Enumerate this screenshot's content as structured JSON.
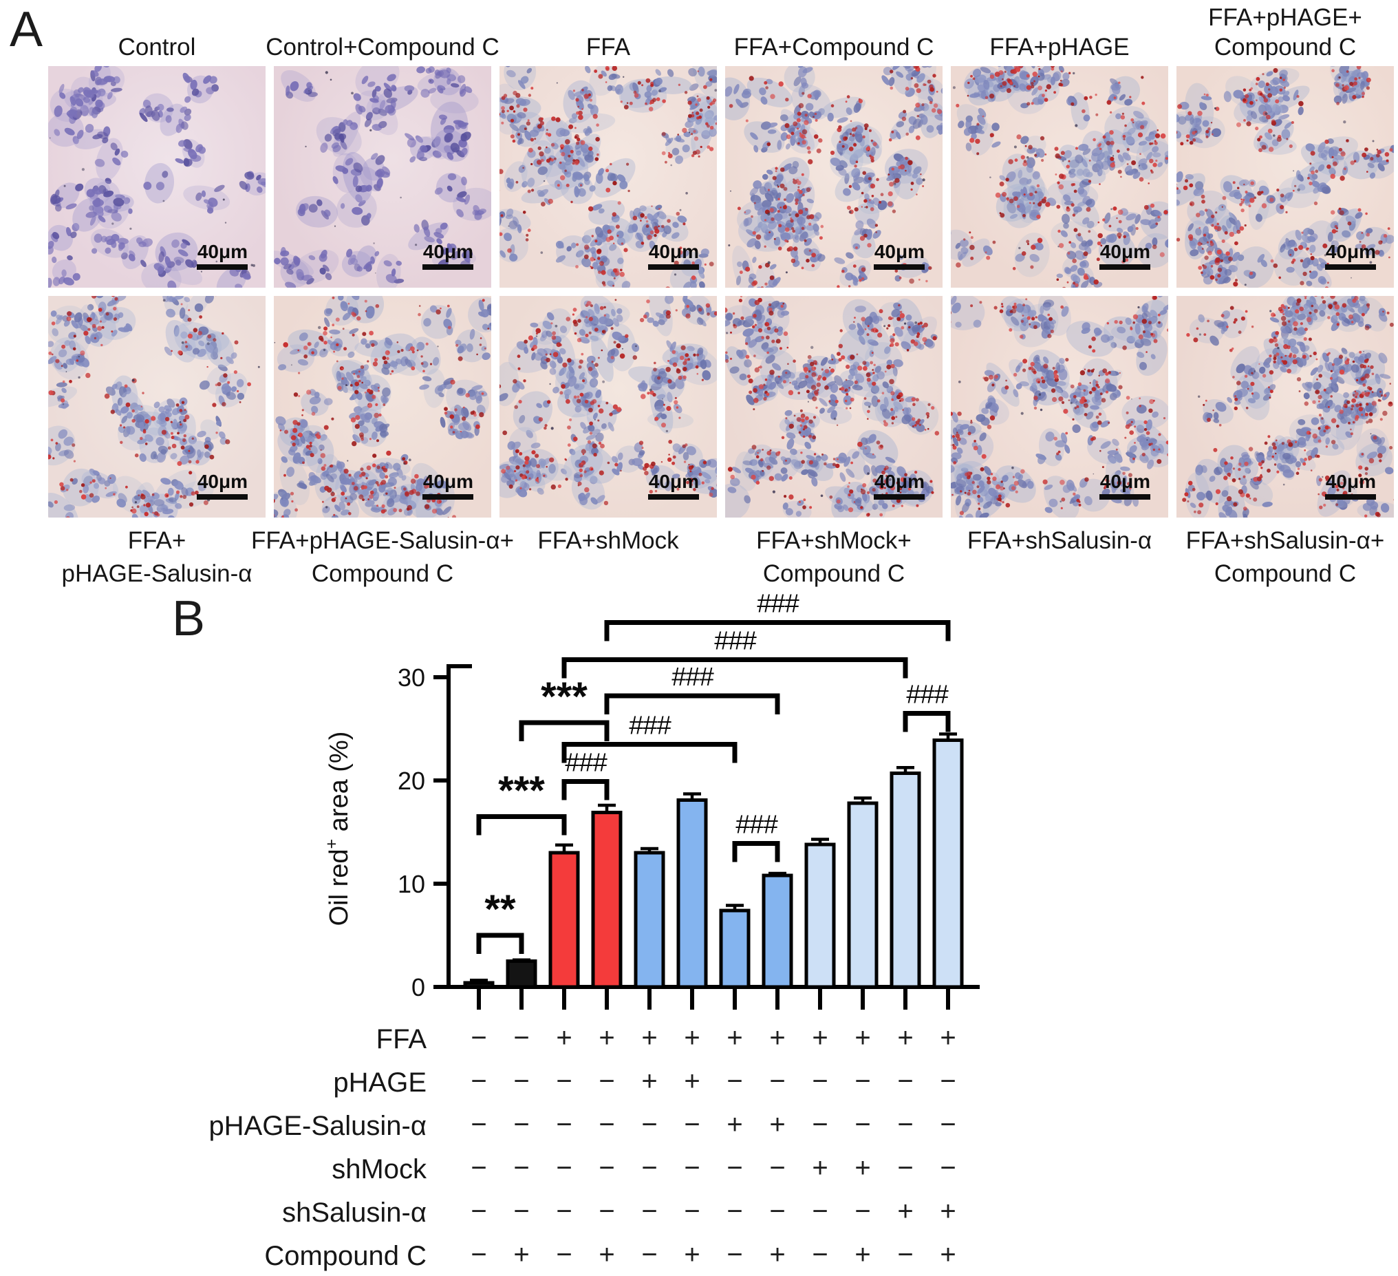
{
  "labels": {
    "panel_a": "A",
    "panel_b": "B"
  },
  "micrographs": {
    "scale_bar_label": "40μm",
    "panels": [
      {
        "row": 0,
        "col": 0,
        "label_lines": [
          "Control"
        ],
        "lipid": "none",
        "bg": "#e7d4dd",
        "bg2": "#efe3e9",
        "nucleus": "#7a71b8",
        "nucleus2": "#5d55a0",
        "cyto": "#a89fd0",
        "seed": 11
      },
      {
        "row": 0,
        "col": 1,
        "label_lines": [
          "Control+Compound C"
        ],
        "lipid": "none",
        "bg": "#e6d2da",
        "bg2": "#eee0e5",
        "nucleus": "#756cb5",
        "nucleus2": "#57509c",
        "cyto": "#a49bcd",
        "seed": 23
      },
      {
        "row": 0,
        "col": 2,
        "label_lines": [
          "FFA"
        ],
        "lipid": "high",
        "bg": "#eedcd6",
        "bg2": "#f4e7e1",
        "nucleus": "#8089bd",
        "nucleus2": "#6b74ac",
        "cyto": "#aab5d3",
        "seed": 37
      },
      {
        "row": 0,
        "col": 3,
        "label_lines": [
          "FFA+Compound C"
        ],
        "lipid": "high",
        "bg": "#eedbd4",
        "bg2": "#f4e7e0",
        "nucleus": "#7f87bc",
        "nucleus2": "#6a72ab",
        "cyto": "#a9b4d2",
        "seed": 41
      },
      {
        "row": 0,
        "col": 4,
        "label_lines": [
          "FFA+pHAGE"
        ],
        "lipid": "high",
        "bg": "#edd9d2",
        "bg2": "#f3e4dd",
        "nucleus": "#8189bd",
        "nucleus2": "#6c74ac",
        "cyto": "#a9b4d2",
        "seed": 59
      },
      {
        "row": 0,
        "col": 5,
        "label_lines": [
          "FFA+pHAGE+",
          "Compound C"
        ],
        "lipid": "high",
        "bg": "#eedad2",
        "bg2": "#f3e5de",
        "nucleus": "#8089bd",
        "nucleus2": "#6b73ab",
        "cyto": "#a9b4d2",
        "seed": 67
      },
      {
        "row": 1,
        "col": 0,
        "label_lines": [
          "FFA+",
          "pHAGE-Salusin-α"
        ],
        "lipid": "medium",
        "bg": "#ecdcd8",
        "bg2": "#f2e6e1",
        "nucleus": "#848cc0",
        "nucleus2": "#6f77ae",
        "cyto": "#aeb8d5",
        "seed": 79
      },
      {
        "row": 1,
        "col": 1,
        "label_lines": [
          "FFA+pHAGE-Salusin-α+",
          "Compound C"
        ],
        "lipid": "high",
        "bg": "#eddad3",
        "bg2": "#f2e4dd",
        "nucleus": "#8088bc",
        "nucleus2": "#6b73ab",
        "cyto": "#a9b4d2",
        "seed": 83
      },
      {
        "row": 1,
        "col": 2,
        "label_lines": [
          "FFA+shMock"
        ],
        "lipid": "high",
        "bg": "#eddbd4",
        "bg2": "#f3e6df",
        "nucleus": "#8189bd",
        "nucleus2": "#6c74ac",
        "cyto": "#aab5d3",
        "seed": 97
      },
      {
        "row": 1,
        "col": 3,
        "label_lines": [
          "FFA+shMock+",
          "Compound C"
        ],
        "lipid": "dense",
        "bg": "#ecd9d3",
        "bg2": "#f2e3dc",
        "nucleus": "#7f87bb",
        "nucleus2": "#6a72aa",
        "cyto": "#a8b3d1",
        "seed": 101
      },
      {
        "row": 1,
        "col": 4,
        "label_lines": [
          "FFA+shSalusin-α"
        ],
        "lipid": "high",
        "bg": "#edd9d2",
        "bg2": "#f3e4dd",
        "nucleus": "#8189bd",
        "nucleus2": "#6c74ac",
        "cyto": "#a9b4d2",
        "seed": 113
      },
      {
        "row": 1,
        "col": 5,
        "label_lines": [
          "FFA+shSalusin-α+",
          "Compound C"
        ],
        "lipid": "dense",
        "bg": "#ecd8d1",
        "bg2": "#f2e3dc",
        "nucleus": "#7e86ba",
        "nucleus2": "#6971a9",
        "cyto": "#a8b3d1",
        "seed": 127
      }
    ]
  },
  "chart_data": {
    "type": "bar",
    "title": "",
    "xlabel": "",
    "ylabel": "Oil red+ area (%)",
    "ylabel_parts": {
      "base": "Oil red",
      "sup": "+",
      "rest": " area (%)"
    },
    "ylim": [
      0,
      30
    ],
    "yticks": [
      0,
      10,
      20,
      30
    ],
    "grid": false,
    "legend": "none",
    "categories": [
      "Control",
      "Control+Compound C",
      "FFA",
      "FFA+Compound C",
      "FFA+pHAGE",
      "FFA+pHAGE+Compound C",
      "FFA+pHAGE-Salusin-α",
      "FFA+pHAGE-Salusin-α+Compound C",
      "FFA+shMock",
      "FFA+shMock+Compound C",
      "FFA+shSalusin-α",
      "FFA+shSalusin-α+Compound C"
    ],
    "values": [
      0.4,
      2.5,
      13.0,
      16.9,
      13.0,
      18.1,
      7.4,
      10.8,
      13.8,
      17.8,
      20.7,
      23.9
    ],
    "errors": [
      0.25,
      0.12,
      0.75,
      0.7,
      0.4,
      0.6,
      0.5,
      0.2,
      0.5,
      0.5,
      0.55,
      0.6
    ],
    "bar_colors": [
      "#141414",
      "#141414",
      "#f43b3b",
      "#f43b3b",
      "#84b4ef",
      "#84b4ef",
      "#84b4ef",
      "#84b4ef",
      "#cde0f6",
      "#cde0f6",
      "#cde0f6",
      "#cde0f6"
    ],
    "bar_border_color": "#000000",
    "significance": [
      {
        "from": 1,
        "to": 2,
        "y": 5.0,
        "label": "**"
      },
      {
        "from": 1,
        "to": 3,
        "y": 16.5,
        "label": "***"
      },
      {
        "from": 2,
        "to": 4,
        "y": 25.6,
        "label": "***"
      },
      {
        "from": 3,
        "to": 4,
        "y": 19.9,
        "label": "###"
      },
      {
        "from": 3,
        "to": 7,
        "y": 23.5,
        "label": "###"
      },
      {
        "from": 4,
        "to": 8,
        "y": 28.2,
        "label": "###"
      },
      {
        "from": 3,
        "to": 11,
        "y": 31.7,
        "label": "###"
      },
      {
        "from": 4,
        "to": 12,
        "y": 35.3,
        "label": "###"
      },
      {
        "from": 7,
        "to": 8,
        "y": 13.9,
        "label": "###"
      },
      {
        "from": 11,
        "to": 12,
        "y": 26.5,
        "label": "###"
      }
    ],
    "treatment_matrix": {
      "rows": [
        {
          "label": "FFA",
          "signs": [
            "−",
            "−",
            "+",
            "+",
            "+",
            "+",
            "+",
            "+",
            "+",
            "+",
            "+",
            "+"
          ]
        },
        {
          "label": "pHAGE",
          "signs": [
            "−",
            "−",
            "−",
            "−",
            "+",
            "+",
            "−",
            "−",
            "−",
            "−",
            "−",
            "−"
          ]
        },
        {
          "label": "pHAGE-Salusin-α",
          "signs": [
            "−",
            "−",
            "−",
            "−",
            "−",
            "−",
            "+",
            "+",
            "−",
            "−",
            "−",
            "−"
          ]
        },
        {
          "label": "shMock",
          "signs": [
            "−",
            "−",
            "−",
            "−",
            "−",
            "−",
            "−",
            "−",
            "+",
            "+",
            "−",
            "−"
          ]
        },
        {
          "label": "shSalusin-α",
          "signs": [
            "−",
            "−",
            "−",
            "−",
            "−",
            "−",
            "−",
            "−",
            "−",
            "−",
            "+",
            "+"
          ]
        },
        {
          "label": "Compound C",
          "signs": [
            "−",
            "+",
            "−",
            "+",
            "−",
            "+",
            "−",
            "+",
            "−",
            "+",
            "−",
            "+"
          ]
        }
      ]
    }
  }
}
